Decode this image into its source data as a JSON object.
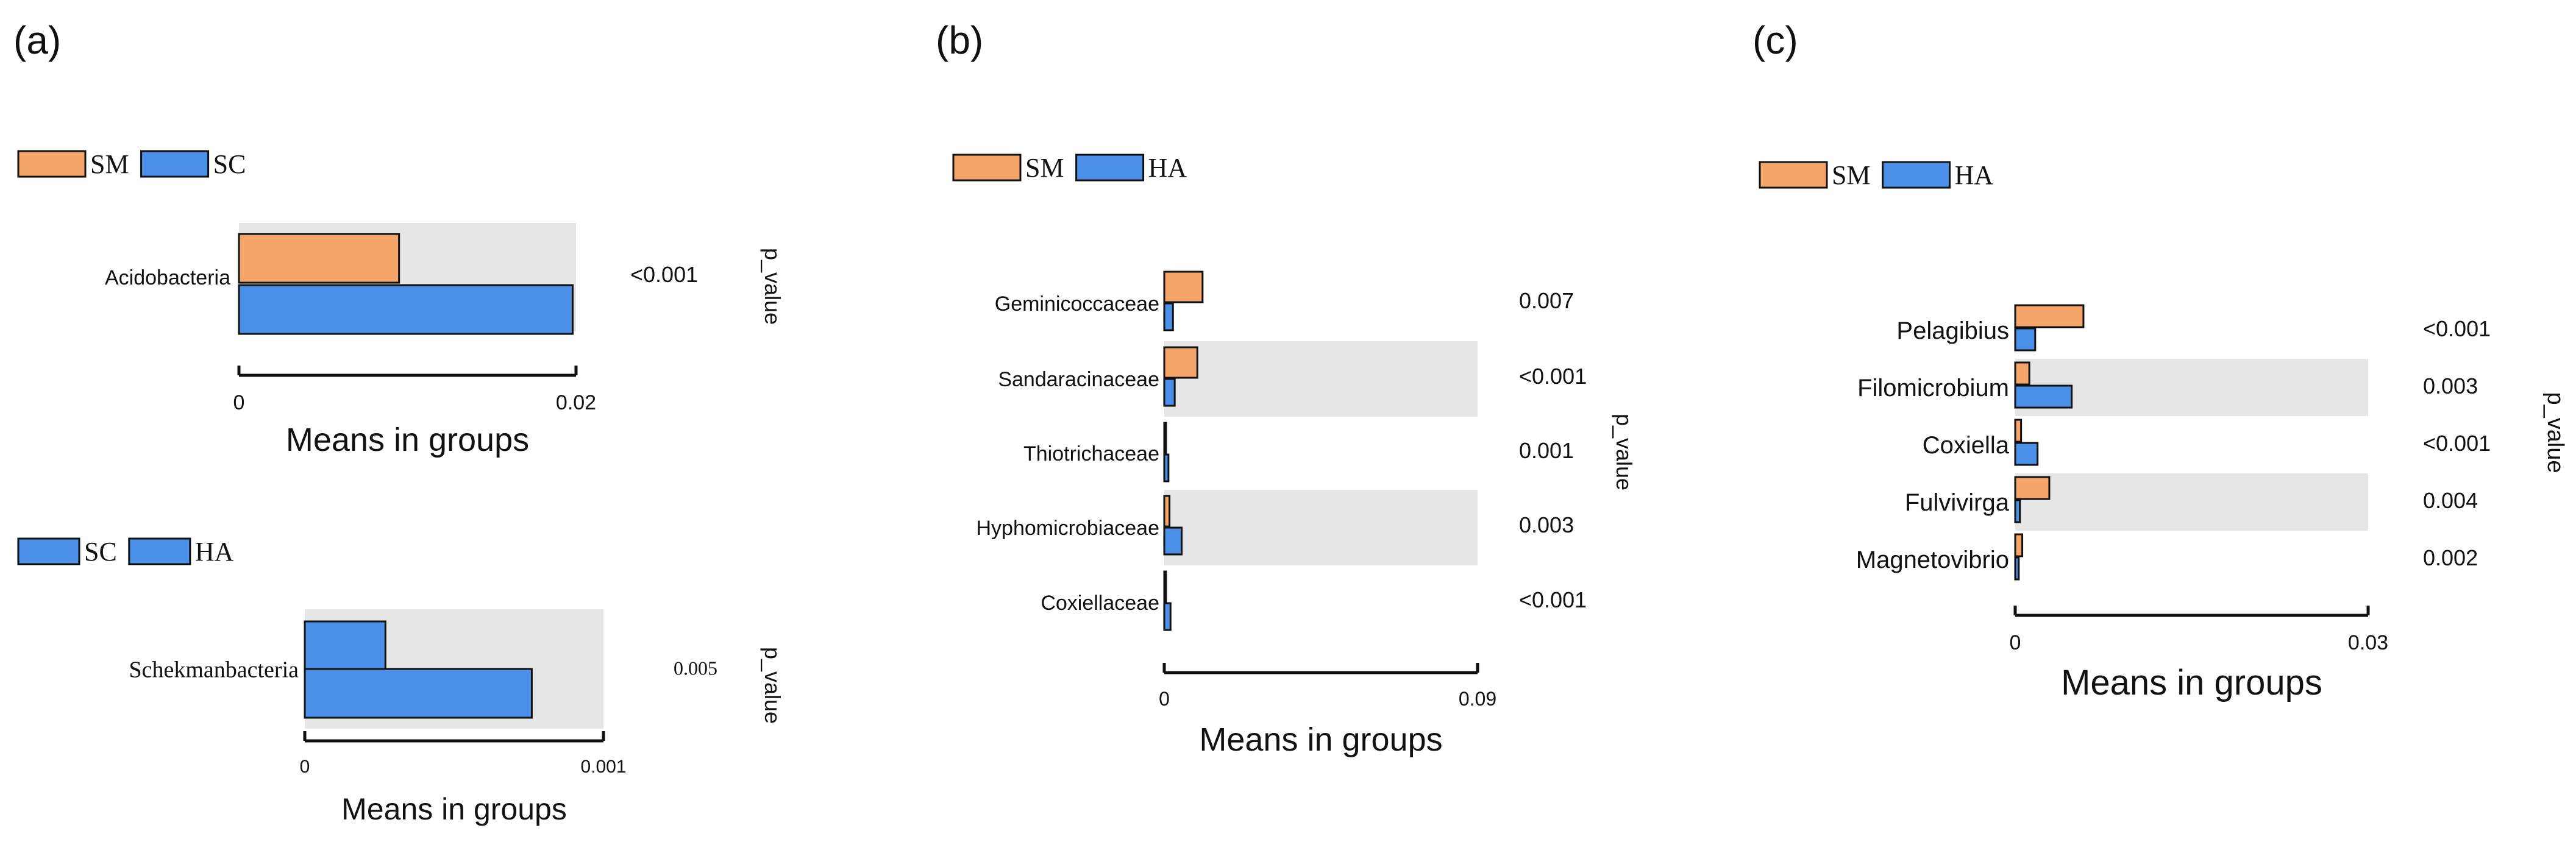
{
  "colors": {
    "SM": "#F5A56A",
    "SC": "#4A90E8",
    "HA": "#4A90E8",
    "band": "#E6E6E6",
    "stroke": "#111111"
  },
  "chart_data": [
    {
      "panel": "(a)",
      "type": "bar",
      "orientation": "horizontal",
      "legend": [
        "SM",
        "SC"
      ],
      "categories": [
        "Acidobacteria"
      ],
      "series": [
        {
          "name": "SM",
          "values": [
            0.0095
          ]
        },
        {
          "name": "SC",
          "values": [
            0.0198
          ]
        }
      ],
      "p_values": [
        "<0.001"
      ],
      "xlim": [
        0,
        0.02
      ],
      "ticks": [
        "0",
        "0.02"
      ],
      "xlabel": "Means in groups",
      "pvalue_label": "p_value"
    },
    {
      "panel": "",
      "type": "bar",
      "orientation": "horizontal",
      "legend": [
        "SC",
        "HA"
      ],
      "categories": [
        "Schekmanbacteria"
      ],
      "series": [
        {
          "name": "SC",
          "values": [
            0.00027
          ]
        },
        {
          "name": "HA",
          "values": [
            0.00076
          ]
        }
      ],
      "p_values": [
        "0.005"
      ],
      "xlim": [
        0,
        0.001
      ],
      "ticks": [
        "0",
        "0.001"
      ],
      "xlabel": "Means in groups",
      "pvalue_label": "p_value"
    },
    {
      "panel": "(b)",
      "type": "bar",
      "orientation": "horizontal",
      "legend": [
        "SM",
        "HA"
      ],
      "categories": [
        "Geminicoccaceae",
        "Sandaracinaceae",
        "Thiotrichaceae",
        "Hyphomicrobiaceae",
        "Coxiellaceae"
      ],
      "series": [
        {
          "name": "SM",
          "values": [
            0.011,
            0.0095,
            0.0005,
            0.0015,
            0.0005
          ]
        },
        {
          "name": "HA",
          "values": [
            0.0025,
            0.003,
            0.0012,
            0.005,
            0.0018
          ]
        }
      ],
      "p_values": [
        "0.007",
        "<0.001",
        "0.001",
        "0.003",
        "<0.001"
      ],
      "xlim": [
        0,
        0.09
      ],
      "ticks": [
        "0",
        "0.09"
      ],
      "xlabel": "Means in groups",
      "pvalue_label": "p_value"
    },
    {
      "panel": "(c)",
      "type": "bar",
      "orientation": "horizontal",
      "legend": [
        "SM",
        "HA"
      ],
      "categories": [
        "Pelagibius",
        "Filomicrobium",
        "Coxiella",
        "Fulvivirga",
        "Magnetovibrio"
      ],
      "series": [
        {
          "name": "SM",
          "values": [
            0.0058,
            0.0012,
            0.0005,
            0.0029,
            0.0006
          ]
        },
        {
          "name": "HA",
          "values": [
            0.0017,
            0.0048,
            0.0019,
            0.0004,
            0.0003
          ]
        }
      ],
      "p_values": [
        "<0.001",
        "0.003",
        "<0.001",
        "0.004",
        "0.002"
      ],
      "xlim": [
        0,
        0.03
      ],
      "ticks": [
        "0",
        "0.03"
      ],
      "xlabel": "Means in groups",
      "pvalue_label": "p_value"
    }
  ]
}
